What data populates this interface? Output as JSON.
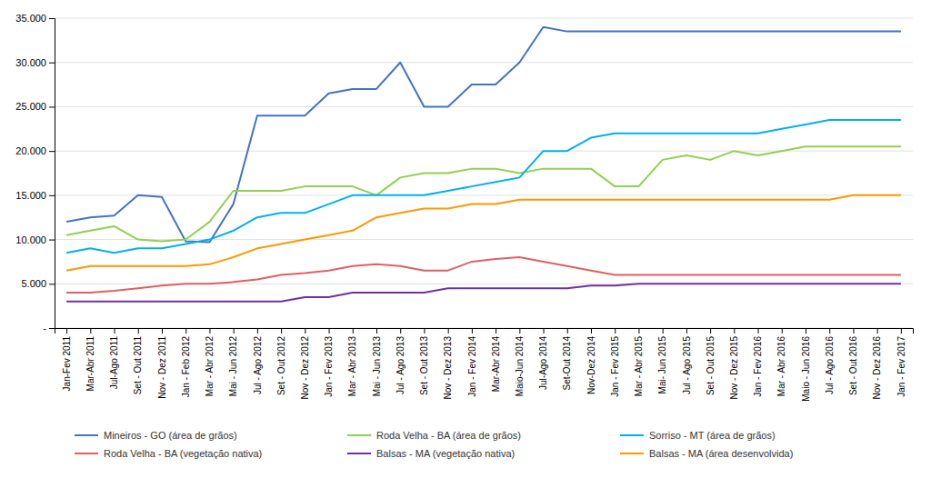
{
  "chart_data": {
    "type": "line",
    "categories": [
      "Jan-Fev 2011",
      "Mar-Abr 2011",
      "Jul-Ago 2011",
      "Set - Out 2011",
      "Nov - Dez 2011",
      "Jan - Feb 2012",
      "Mar - Abr 2012",
      "Mai - Jun 2012",
      "Jul - Ago 2012",
      "Set - Out 2012",
      "Nov - Dez 2012",
      "Jan - Fev 2013",
      "Mar - Abr 2013",
      "Mai - Jun 2013",
      "Jul - Ago 2013",
      "Set - Out 2013",
      "Nov - Dez 2013",
      "Jan - Fev 2014",
      "Mar-Abr 2014",
      "Maio-Jun 2014",
      "Jul-Ago 2014",
      "Set-Out 2014",
      "Nov-Dez 2014",
      "Jan - Fev 2015",
      "Mar - Abr 2015",
      "Mai- Jun 2015",
      "Jul - Ago 2015",
      "Set - Out 2015",
      "Nov - Dez 2015",
      "Jan - Fev 2016",
      "Mar - Abr 2016",
      "Maio - Jun 2016",
      "Jul - Ago 2016",
      "Set - Out 2016",
      "Nov - Dez 2016",
      "Jan - Fev 2017"
    ],
    "series": [
      {
        "name": "Mineiros - GO (área de grãos)",
        "color": "#4472C4",
        "values": [
          12000,
          12500,
          12700,
          15000,
          14800,
          9800,
          9700,
          14000,
          24000,
          24000,
          24000,
          26500,
          27000,
          27000,
          30000,
          25000,
          25000,
          27500,
          27500,
          30000,
          34000,
          33500,
          33500,
          33500,
          33500,
          33500,
          33500,
          33500,
          33500,
          33500,
          33500,
          33500,
          33500,
          33500,
          33500,
          33500
        ]
      },
      {
        "name": "Roda Velha - BA (vegetação nativa)",
        "color": "#E06060",
        "values": [
          4000,
          4000,
          4200,
          4500,
          4800,
          5000,
          5000,
          5200,
          5500,
          6000,
          6200,
          6500,
          7000,
          7200,
          7000,
          6500,
          6500,
          7500,
          7800,
          8000,
          7500,
          7000,
          6500,
          6000,
          6000,
          6000,
          6000,
          6000,
          6000,
          6000,
          6000,
          6000,
          6000,
          6000,
          6000,
          6000
        ]
      },
      {
        "name": "Roda Velha - BA (área de grãos)",
        "color": "#92D050",
        "values": [
          10500,
          11000,
          11500,
          10000,
          9800,
          10000,
          12000,
          15500,
          15500,
          15500,
          16000,
          16000,
          16000,
          15000,
          17000,
          17500,
          17500,
          18000,
          18000,
          17500,
          18000,
          18000,
          18000,
          16000,
          16000,
          19000,
          19500,
          19000,
          20000,
          19500,
          20000,
          20500,
          20500,
          20500,
          20500,
          20500
        ]
      },
      {
        "name": "Balsas - MA (vegetação nativa)",
        "color": "#7030A0",
        "values": [
          3000,
          3000,
          3000,
          3000,
          3000,
          3000,
          3000,
          3000,
          3000,
          3000,
          3500,
          3500,
          4000,
          4000,
          4000,
          4000,
          4500,
          4500,
          4500,
          4500,
          4500,
          4500,
          4800,
          4800,
          5000,
          5000,
          5000,
          5000,
          5000,
          5000,
          5000,
          5000,
          5000,
          5000,
          5000,
          5000
        ]
      },
      {
        "name": "Sorriso - MT (área de grãos)",
        "color": "#00B0F0",
        "values": [
          8500,
          9000,
          8500,
          9000,
          9000,
          9500,
          10000,
          11000,
          12500,
          13000,
          13000,
          14000,
          15000,
          15000,
          15000,
          15000,
          15500,
          16000,
          16500,
          17000,
          20000,
          20000,
          21500,
          22000,
          22000,
          22000,
          22000,
          22000,
          22000,
          22000,
          22500,
          23000,
          23500,
          23500,
          23500,
          23500
        ]
      },
      {
        "name": "Balsas - MA (área desenvolvida)",
        "color": "#FF9900",
        "values": [
          6500,
          7000,
          7000,
          7000,
          7000,
          7000,
          7200,
          8000,
          9000,
          9500,
          10000,
          10500,
          11000,
          12500,
          13000,
          13500,
          13500,
          14000,
          14000,
          14500,
          14500,
          14500,
          14500,
          14500,
          14500,
          14500,
          14500,
          14500,
          14500,
          14500,
          14500,
          14500,
          14500,
          15000,
          15000,
          15000
        ]
      }
    ],
    "ylim": [
      0,
      35000
    ],
    "yticks": [
      {
        "value": 0,
        "label": "-"
      },
      {
        "value": 5000,
        "label": "5.000"
      },
      {
        "value": 10000,
        "label": "10.000"
      },
      {
        "value": 15000,
        "label": "15.000"
      },
      {
        "value": 20000,
        "label": "20.000"
      },
      {
        "value": 25000,
        "label": "25.000"
      },
      {
        "value": 30000,
        "label": "30.000"
      },
      {
        "value": 35000,
        "label": "35.000"
      }
    ],
    "grid": true,
    "legend": "bottom"
  }
}
